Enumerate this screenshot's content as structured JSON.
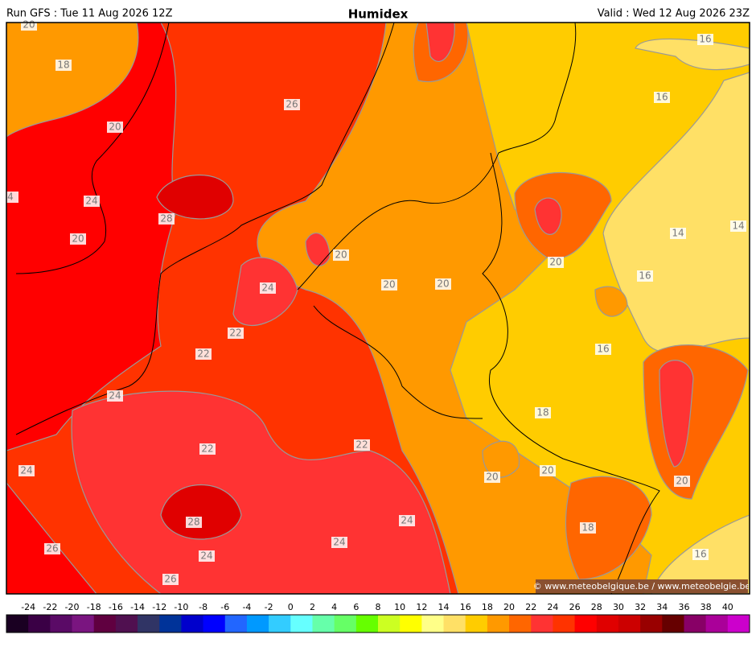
{
  "header": {
    "run": "Run GFS : Tue 11 Aug 2026 12Z",
    "title": "Humidex",
    "valid": "Valid : Wed 12 Aug 2026 23Z"
  },
  "contour_labels": [
    20,
    18,
    20,
    26,
    4,
    24,
    28,
    20,
    20,
    24,
    20,
    20,
    22,
    22,
    24,
    22,
    24,
    22,
    28,
    26,
    24,
    24,
    24,
    26,
    16,
    16,
    14,
    14,
    20,
    16,
    16,
    18,
    20,
    20,
    20,
    18,
    16
  ],
  "credit": "© www.meteobelgique.be / www.meteobelgie.be",
  "colorbar": {
    "ticks": [
      -24,
      -22,
      -20,
      -18,
      -16,
      -14,
      -12,
      -10,
      -8,
      -6,
      -4,
      -2,
      0,
      2,
      4,
      6,
      8,
      10,
      12,
      14,
      16,
      18,
      20,
      22,
      24,
      26,
      28,
      30,
      32,
      34,
      36,
      38,
      40
    ],
    "colors": [
      "#1a0022",
      "#3a0045",
      "#5a0a66",
      "#7a1580",
      "#600040",
      "#501050",
      "#303465",
      "#003399",
      "#0000cc",
      "#0000ff",
      "#2266ff",
      "#0099ff",
      "#33ccff",
      "#66ffff",
      "#66ffaa",
      "#66ff66",
      "#66ff00",
      "#ccff22",
      "#ffff00",
      "#ffff88",
      "#ffe066",
      "#ffcc00",
      "#ff9900",
      "#ff6600",
      "#ff3333",
      "#ff3300",
      "#ff0000",
      "#e00000",
      "#cc0000",
      "#990000",
      "#660000",
      "#880066",
      "#aa0099",
      "#cc00cc"
    ]
  }
}
